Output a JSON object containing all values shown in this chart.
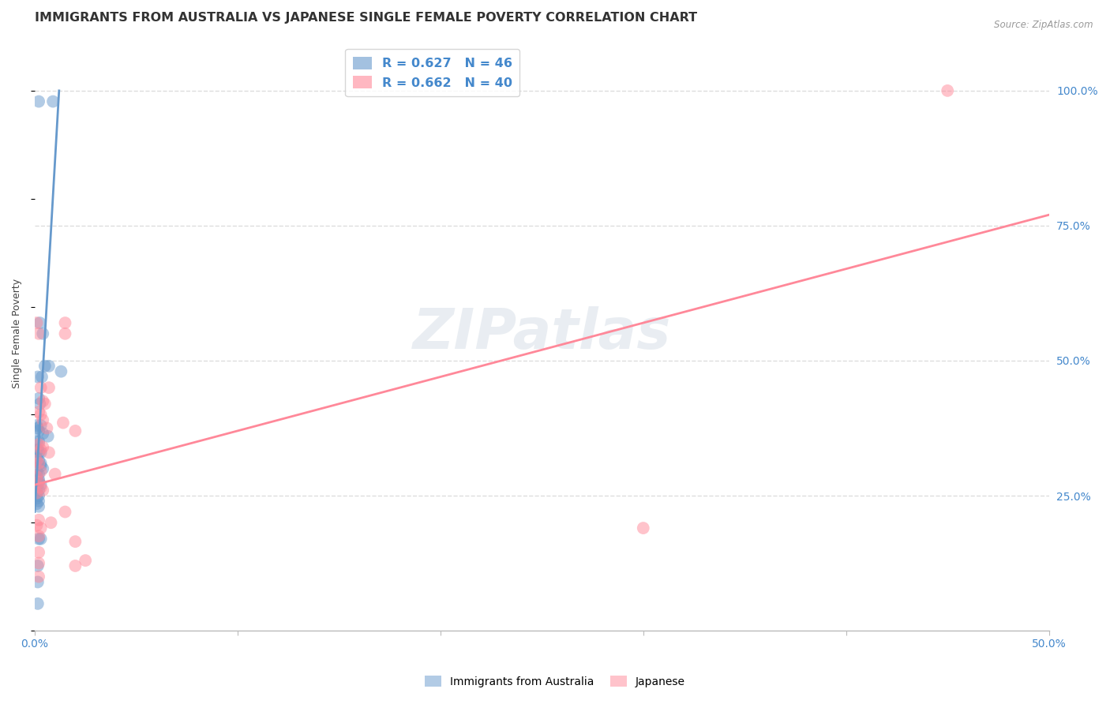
{
  "title": "IMMIGRANTS FROM AUSTRALIA VS JAPANESE SINGLE FEMALE POVERTY CORRELATION CHART",
  "source": "Source: ZipAtlas.com",
  "ylabel": "Single Female Poverty",
  "ytick_labels": [
    "100.0%",
    "75.0%",
    "50.0%",
    "25.0%"
  ],
  "ytick_values": [
    100.0,
    75.0,
    50.0,
    25.0
  ],
  "watermark": "ZIPatlas",
  "blue_color": "#6699CC",
  "pink_color": "#FF8899",
  "blue_scatter": [
    [
      0.2,
      98.0
    ],
    [
      0.9,
      98.0
    ],
    [
      0.25,
      57.0
    ],
    [
      0.4,
      55.0
    ],
    [
      0.5,
      49.0
    ],
    [
      0.7,
      49.0
    ],
    [
      0.15,
      47.0
    ],
    [
      0.35,
      47.0
    ],
    [
      0.2,
      43.0
    ],
    [
      0.25,
      42.0
    ],
    [
      0.1,
      38.0
    ],
    [
      0.3,
      38.0
    ],
    [
      0.15,
      37.5
    ],
    [
      0.2,
      37.0
    ],
    [
      0.4,
      36.5
    ],
    [
      0.65,
      36.0
    ],
    [
      0.1,
      35.0
    ],
    [
      0.2,
      35.0
    ],
    [
      0.15,
      33.5
    ],
    [
      0.2,
      33.0
    ],
    [
      0.3,
      33.0
    ],
    [
      0.1,
      32.0
    ],
    [
      0.2,
      31.5
    ],
    [
      0.3,
      31.0
    ],
    [
      0.3,
      30.5
    ],
    [
      0.4,
      30.0
    ],
    [
      0.1,
      29.5
    ],
    [
      0.2,
      29.0
    ],
    [
      0.1,
      28.5
    ],
    [
      0.2,
      28.0
    ],
    [
      0.2,
      27.5
    ],
    [
      0.3,
      27.0
    ],
    [
      0.1,
      26.5
    ],
    [
      0.2,
      26.0
    ],
    [
      0.1,
      25.5
    ],
    [
      0.2,
      25.0
    ],
    [
      0.1,
      24.5
    ],
    [
      0.2,
      24.0
    ],
    [
      0.1,
      23.5
    ],
    [
      0.2,
      23.0
    ],
    [
      1.3,
      48.0
    ],
    [
      0.2,
      17.0
    ],
    [
      0.3,
      17.0
    ],
    [
      0.15,
      12.0
    ],
    [
      0.15,
      9.0
    ],
    [
      0.15,
      5.0
    ]
  ],
  "pink_scatter": [
    [
      45.0,
      100.0
    ],
    [
      0.1,
      57.0
    ],
    [
      0.2,
      55.0
    ],
    [
      1.5,
      57.0
    ],
    [
      1.5,
      55.0
    ],
    [
      0.3,
      45.0
    ],
    [
      0.7,
      45.0
    ],
    [
      0.4,
      42.5
    ],
    [
      0.5,
      42.0
    ],
    [
      0.2,
      40.5
    ],
    [
      0.3,
      40.0
    ],
    [
      0.4,
      39.0
    ],
    [
      1.4,
      38.5
    ],
    [
      0.6,
      37.5
    ],
    [
      2.0,
      37.0
    ],
    [
      0.2,
      34.5
    ],
    [
      0.4,
      34.0
    ],
    [
      0.3,
      33.5
    ],
    [
      0.7,
      33.0
    ],
    [
      0.1,
      31.5
    ],
    [
      0.2,
      31.0
    ],
    [
      0.3,
      29.5
    ],
    [
      1.0,
      29.0
    ],
    [
      0.1,
      28.5
    ],
    [
      0.2,
      27.5
    ],
    [
      0.3,
      26.5
    ],
    [
      0.4,
      26.0
    ],
    [
      0.1,
      25.5
    ],
    [
      1.5,
      22.0
    ],
    [
      0.2,
      20.5
    ],
    [
      0.8,
      20.0
    ],
    [
      0.1,
      19.5
    ],
    [
      0.3,
      19.0
    ],
    [
      0.2,
      17.5
    ],
    [
      2.0,
      16.5
    ],
    [
      0.2,
      14.5
    ],
    [
      2.5,
      13.0
    ],
    [
      30.0,
      19.0
    ],
    [
      0.2,
      12.5
    ],
    [
      2.0,
      12.0
    ],
    [
      0.2,
      10.0
    ]
  ],
  "blue_line_x": [
    0.0,
    1.2
  ],
  "blue_line_y": [
    22.0,
    100.0
  ],
  "pink_line_x": [
    0.0,
    50.0
  ],
  "pink_line_y": [
    27.0,
    77.0
  ],
  "xmin": 0.0,
  "xmax": 50.0,
  "ymin": 0.0,
  "ymax": 110.0,
  "grid_color": "#DDDDDD",
  "axis_label_color": "#4488CC",
  "title_color": "#333333",
  "title_fontsize": 11.5,
  "label_fontsize": 9,
  "tick_fontsize": 10
}
